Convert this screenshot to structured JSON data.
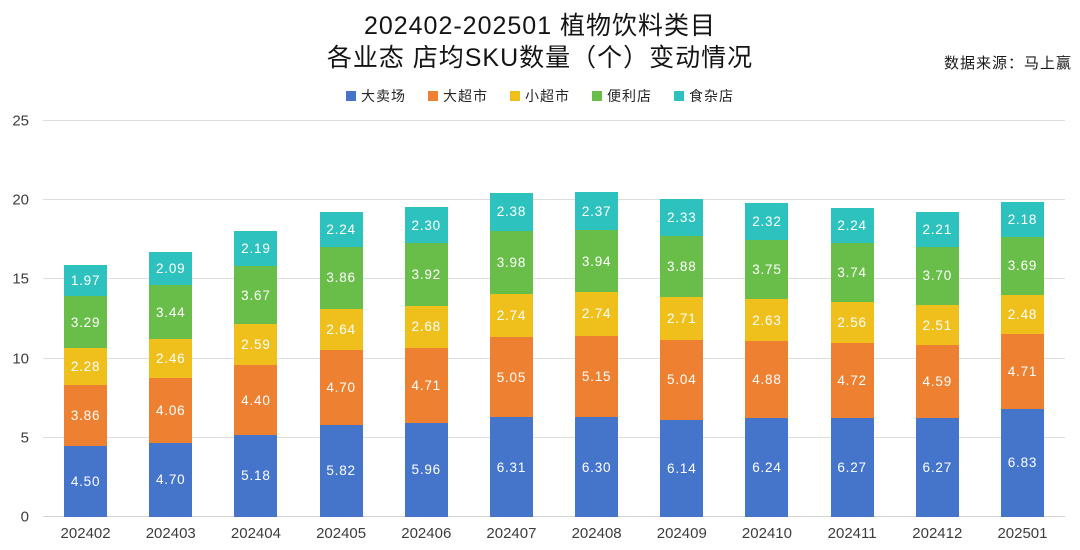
{
  "title": {
    "line1": "202402-202501 植物饮料类目",
    "line2": "各业态 店均SKU数量（个）变动情况"
  },
  "source": "数据来源：马上赢",
  "chart_data": {
    "type": "bar",
    "stacked": true,
    "title": "202402-202501 植物饮料类目 各业态 店均SKU数量（个）变动情况",
    "xlabel": "",
    "ylabel": "",
    "ylim": [
      0,
      25
    ],
    "yticks": [
      0,
      5,
      10,
      15,
      20,
      25
    ],
    "grid": true,
    "legend_position": "top",
    "value_labels": true,
    "gridline_color": "#dedede",
    "categories": [
      "202402",
      "202403",
      "202404",
      "202405",
      "202406",
      "202407",
      "202408",
      "202409",
      "202410",
      "202411",
      "202412",
      "202501"
    ],
    "series": [
      {
        "name": "大卖场",
        "color": "#4575CB",
        "values": [
          4.5,
          4.7,
          5.18,
          5.82,
          5.96,
          6.31,
          6.3,
          6.14,
          6.24,
          6.27,
          6.27,
          6.83
        ]
      },
      {
        "name": "大超市",
        "color": "#EE8031",
        "values": [
          3.86,
          4.06,
          4.4,
          4.7,
          4.71,
          5.05,
          5.15,
          5.04,
          4.88,
          4.72,
          4.59,
          4.71
        ]
      },
      {
        "name": "小超市",
        "color": "#EFBF1C",
        "values": [
          2.28,
          2.46,
          2.59,
          2.64,
          2.68,
          2.74,
          2.74,
          2.71,
          2.63,
          2.56,
          2.51,
          2.48
        ]
      },
      {
        "name": "便利店",
        "color": "#69BE49",
        "values": [
          3.29,
          3.44,
          3.67,
          3.86,
          3.92,
          3.98,
          3.94,
          3.88,
          3.75,
          3.74,
          3.7,
          3.69
        ]
      },
      {
        "name": "食杂店",
        "color": "#2EC2BE",
        "values": [
          1.97,
          2.09,
          2.19,
          2.24,
          2.3,
          2.38,
          2.37,
          2.33,
          2.32,
          2.24,
          2.21,
          2.18
        ]
      }
    ]
  }
}
